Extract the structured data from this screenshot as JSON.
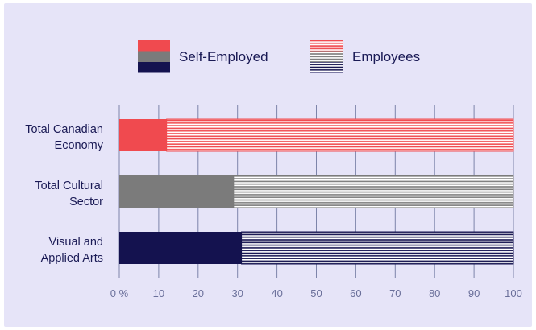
{
  "chart_data": {
    "type": "bar",
    "orientation": "horizontal",
    "stacked": true,
    "percent": true,
    "categories": [
      [
        "Total Canadian",
        "Economy"
      ],
      [
        "Total Cultural",
        "Sector"
      ],
      [
        "Visual and",
        "Applied Arts"
      ]
    ],
    "series": [
      {
        "name": "Self-Employed",
        "values": [
          12,
          29,
          31
        ]
      },
      {
        "name": "Employees",
        "values": [
          88,
          71,
          69
        ]
      }
    ],
    "xlim": [
      0,
      100
    ],
    "ticks": [
      "0 %",
      "10",
      "20",
      "30",
      "40",
      "50",
      "60",
      "70",
      "80",
      "90",
      "100"
    ],
    "grid": true,
    "legend": "top",
    "colors": {
      "category_fills": [
        "#f04a4f",
        "#7b7b7b",
        "#14124f"
      ],
      "employee_stripes": [
        "#f04a4f",
        "#7b7b7b",
        "#14124f"
      ],
      "grid": "#7d84aa",
      "background": "#e6e4f8"
    }
  }
}
